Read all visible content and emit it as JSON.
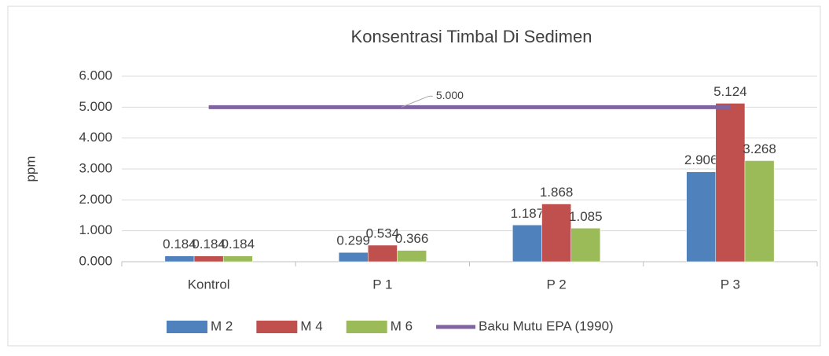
{
  "chart_data": {
    "type": "bar",
    "title": "Konsentrasi Timbal Di Sedimen",
    "y_label": "ppm",
    "categories": [
      "Kontrol",
      "P 1",
      "P 2",
      "P 3"
    ],
    "series": [
      {
        "name": "M 2",
        "color": "#4f81bd",
        "values": [
          0.184,
          0.299,
          1.187,
          2.906
        ]
      },
      {
        "name": "M 4",
        "color": "#c0504d",
        "values": [
          0.184,
          0.534,
          1.868,
          5.124
        ]
      },
      {
        "name": "M 6",
        "color": "#9bbb59",
        "values": [
          0.184,
          0.366,
          1.085,
          3.268
        ]
      },
      {
        "name": "Baku Mutu EPA (1990)",
        "color": "#8064a2",
        "type": "line",
        "values": [
          5,
          5,
          5,
          5
        ],
        "value_labels": [
          null,
          "5.000",
          null,
          null
        ]
      }
    ],
    "ylim": [
      0,
      6
    ],
    "yticks": [
      {
        "value": 0,
        "label": "0.000"
      },
      {
        "value": 1,
        "label": "1.000"
      },
      {
        "value": 2,
        "label": "2.000"
      },
      {
        "value": 3,
        "label": "3.000"
      },
      {
        "value": 4,
        "label": "4.000"
      },
      {
        "value": 5,
        "label": "5.000"
      },
      {
        "value": 6,
        "label": "6.000"
      }
    ],
    "grid": true,
    "legend": "bottom"
  }
}
